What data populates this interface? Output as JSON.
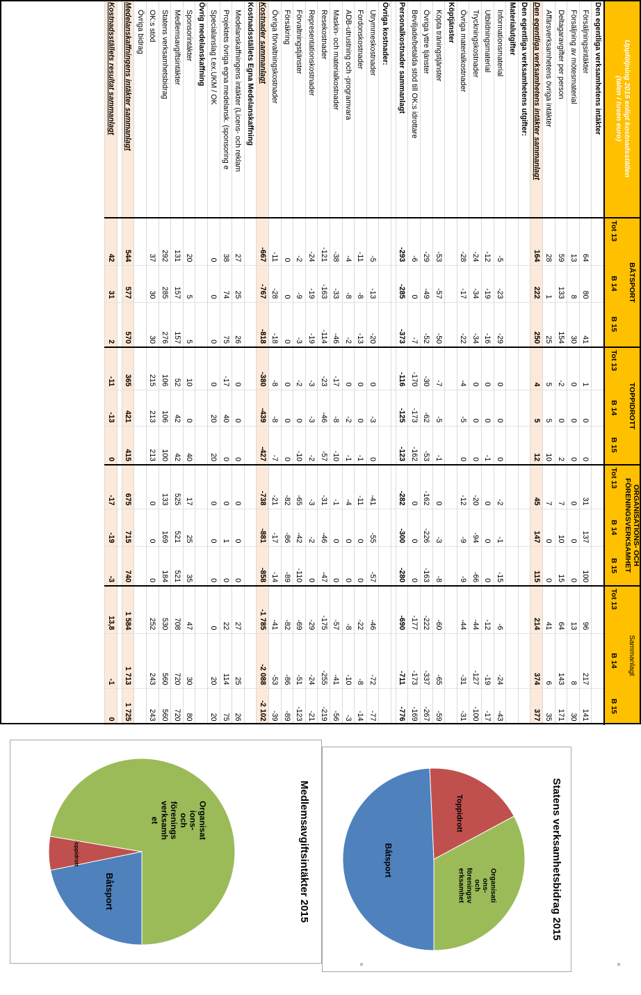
{
  "table": {
    "title": "Uppföljning 2015 enligt kostnadsställen",
    "subtitle": "(talen i tusen euro)",
    "groups": [
      "BÅTSPORT",
      "TOPPIDROTT",
      "ORGANISATIONS- OCH FÖRENINGSVERKSAMHET",
      "Sammanlagt"
    ],
    "columns": [
      "Tot 13",
      "B 14",
      "B 15"
    ],
    "rows": [
      {
        "label": "Den egentliga verksamhetens intäkter",
        "kind": "sec",
        "values": [
          "",
          "",
          "",
          "",
          "",
          "",
          "",
          "",
          "",
          "",
          "",
          ""
        ]
      },
      {
        "label": "Försäljningsintäkter",
        "kind": "ind",
        "values": [
          "64",
          "80",
          "41",
          "1",
          "0",
          "0",
          "31",
          "137",
          "100",
          "96",
          "217",
          "141"
        ]
      },
      {
        "label": "Försäljning av mötesmaterial",
        "kind": "ind",
        "values": [
          "13",
          "8",
          "30",
          "0",
          "0",
          "0",
          "0",
          "0",
          "0",
          "13",
          "8",
          "30"
        ]
      },
      {
        "label": "Deltagaravgifter per person",
        "kind": "ind",
        "values": [
          "59",
          "133",
          "154",
          "-2",
          "0",
          "2",
          "7",
          "10",
          "15",
          "64",
          "143",
          "171"
        ]
      },
      {
        "label": "Affärsverksamhetens övriga intäkter",
        "kind": "ind",
        "values": [
          "28",
          "1",
          "25",
          "5",
          "5",
          "10",
          "7",
          "0",
          "0",
          "41",
          "6",
          "35"
        ]
      },
      {
        "label": "Den egentliga verksamhetens intäkter sammanlagt",
        "kind": "tot",
        "values": [
          "164",
          "222",
          "250",
          "4",
          "5",
          "12",
          "45",
          "147",
          "115",
          "214",
          "374",
          "377"
        ]
      },
      {
        "label": "Den egentliga verksamhetens utgifter:",
        "kind": "sec",
        "values": [
          "",
          "",
          "",
          "",
          "",
          "",
          "",
          "",
          "",
          "",
          "",
          ""
        ]
      },
      {
        "label": "Materialutgifter",
        "kind": "sec",
        "values": [
          "",
          "",
          "",
          "",
          "",
          "",
          "",
          "",
          "",
          "",
          "",
          ""
        ]
      },
      {
        "label": "Informationsmaterial",
        "kind": "ind",
        "values": [
          "-5",
          "-23",
          "-29",
          "0",
          "0",
          "0",
          "-2",
          "-1",
          "-15",
          "-6",
          "-24",
          "-43"
        ]
      },
      {
        "label": "Utbildningsmaterial",
        "kind": "ind",
        "values": [
          "-12",
          "-19",
          "-16",
          "0",
          "0",
          "-1",
          "0",
          "0",
          "0",
          "-12",
          "-19",
          "-17"
        ]
      },
      {
        "label": "Tryckningskostnader",
        "kind": "ind",
        "values": [
          "-24",
          "-34",
          "-34",
          "0",
          "0",
          "0",
          "-20",
          "-94",
          "-66",
          "-44",
          "-127",
          "-100"
        ]
      },
      {
        "label": "Övriga materialkostnader",
        "kind": "ind",
        "values": [
          "-28",
          "-17",
          "-22",
          "-4",
          "-5",
          "0",
          "-12",
          "-9",
          "-9",
          "-44",
          "-31",
          "-31"
        ]
      },
      {
        "label": "Köptjänster",
        "kind": "sec",
        "values": [
          "",
          "",
          "",
          "",
          "",
          "",
          "",
          "",
          "",
          "",
          "",
          ""
        ]
      },
      {
        "label": "Köpta träningstjänster",
        "kind": "ind",
        "values": [
          "-53",
          "-57",
          "-50",
          "-7",
          "-5",
          "-1",
          "0",
          "-3",
          "-8",
          "-60",
          "-65",
          "-59"
        ]
      },
      {
        "label": "Övriga yttre tjänster",
        "kind": "ind",
        "values": [
          "-29",
          "-49",
          "-52",
          "-30",
          "-62",
          "-53",
          "-162",
          "-226",
          "-163",
          "-222",
          "-337",
          "-267"
        ]
      },
      {
        "label": "Beviljade/betalda stöd till OK:s idrottare",
        "kind": "ind",
        "values": [
          "-6",
          "0",
          "-7",
          "-170",
          "-173",
          "-162",
          "0",
          "0",
          "0",
          "-177",
          "-173",
          "-169"
        ]
      },
      {
        "label": "Personalkostnader sammanlagt",
        "kind": "bold",
        "values": [
          "-293",
          "-285",
          "-373",
          "-116",
          "-125",
          "-123",
          "-282",
          "-300",
          "-280",
          "-690",
          "-711",
          "-776"
        ]
      },
      {
        "label": "",
        "kind": "gap",
        "values": [
          "",
          "",
          "",
          "",
          "",
          "",
          "",
          "",
          "",
          "",
          "",
          ""
        ]
      },
      {
        "label": "Övriga kostnader:",
        "kind": "sec",
        "values": [
          "",
          "",
          "",
          "",
          "",
          "",
          "",
          "",
          "",
          "",
          "",
          ""
        ]
      },
      {
        "label": "Utrymmeskostnader",
        "kind": "ind",
        "values": [
          "-5",
          "-13",
          "-20",
          "0",
          "-3",
          "0",
          "-41",
          "-55",
          "-57",
          "-46",
          "-72",
          "-77"
        ]
      },
      {
        "label": "Fordonskostnader",
        "kind": "ind",
        "values": [
          "-11",
          "-8",
          "-13",
          "0",
          "0",
          "-1",
          "-11",
          "0",
          "0",
          "-22",
          "-8",
          "-14"
        ]
      },
      {
        "label": "ADB-utrustning och -programvara",
        "kind": "ind",
        "values": [
          "-4",
          "-8",
          "-2",
          "0",
          "-2",
          "-1",
          "-4",
          "0",
          "0",
          "-8",
          "-10",
          "-3"
        ]
      },
      {
        "label": "Maskin- och materialkostnader",
        "kind": "ind",
        "values": [
          "-38",
          "-33",
          "-46",
          "-17",
          "-8",
          "-10",
          "-1",
          "0",
          "0",
          "-57",
          "-41",
          "-56"
        ]
      },
      {
        "label": "Resekostnader",
        "kind": "ind",
        "values": [
          "-121",
          "-163",
          "-114",
          "-23",
          "-46",
          "-57",
          "-31",
          "-46",
          "-47",
          "-175",
          "-255",
          "-219"
        ]
      },
      {
        "label": "Representationskostnader",
        "kind": "ind",
        "values": [
          "-24",
          "-19",
          "-19",
          "-3",
          "-3",
          "-2",
          "-3",
          "-2",
          "0",
          "-29",
          "-24",
          "-21"
        ]
      },
      {
        "label": "Förvaltningstjänster",
        "kind": "ind",
        "values": [
          "-2",
          "-9",
          "-3",
          "-2",
          "0",
          "-10",
          "-65",
          "-42",
          "-110",
          "-69",
          "-51",
          "-123"
        ]
      },
      {
        "label": "Försäkring",
        "kind": "ind",
        "values": [
          "0",
          "0",
          "0",
          "0",
          "0",
          "0",
          "-82",
          "-86",
          "-89",
          "-82",
          "-86",
          "-89"
        ]
      },
      {
        "label": "Övriga förvaltningskostnader",
        "kind": "ind",
        "values": [
          "-11",
          "-28",
          "-18",
          "-8",
          "-8",
          "-7",
          "-21",
          "-17",
          "-14",
          "-41",
          "-53",
          "-39"
        ]
      },
      {
        "label": "Kostnader sammanlagt",
        "kind": "tot",
        "values": [
          "-667",
          "-767",
          "-818",
          "-380",
          "-439",
          "-427",
          "-738",
          "-881",
          "-858",
          "-1 785",
          "-2 088",
          "-2 102"
        ]
      },
      {
        "label": "Kostnadsställets Egna Medelanskaffning",
        "kind": "sec",
        "values": [
          "",
          "",
          "",
          "",
          "",
          "",
          "",
          "",
          "",
          "",
          "",
          ""
        ]
      },
      {
        "label": "Medelanskaffningens intäkter (Licens- och reklam",
        "kind": "ind",
        "values": [
          "27",
          "25",
          "26",
          "0",
          "0",
          "0",
          "0",
          "0",
          "0",
          "27",
          "25",
          "26"
        ]
      },
      {
        "label": "Projektets övriga egna medelansk. (sponsoring e",
        "kind": "ind",
        "values": [
          "38",
          "74",
          "75",
          "-17",
          "40",
          "0",
          "0",
          "1",
          "0",
          "22",
          "114",
          "75"
        ]
      },
      {
        "label": "Specialanslag t.ex.UKM / OK",
        "kind": "ind",
        "values": [
          "0",
          "0",
          "0",
          "0",
          "20",
          "20",
          "0",
          "0",
          "0",
          "0",
          "20",
          "20"
        ]
      },
      {
        "label": "Övrig medelanskaffning",
        "kind": "sec",
        "values": [
          "",
          "",
          "",
          "",
          "",
          "",
          "",
          "",
          "",
          "",
          "",
          ""
        ]
      },
      {
        "label": "Sponsorintäkter",
        "kind": "ind",
        "values": [
          "20",
          "5",
          "5",
          "10",
          "0",
          "40",
          "17",
          "25",
          "35",
          "47",
          "30",
          "80"
        ]
      },
      {
        "label": "Medlemsavgiftsintäkter",
        "kind": "ind",
        "values": [
          "131",
          "157",
          "157",
          "52",
          "42",
          "42",
          "525",
          "521",
          "521",
          "708",
          "720",
          "720"
        ]
      },
      {
        "label": "Statens verksamhetsbidrag",
        "kind": "ind",
        "values": [
          "292",
          "285",
          "276",
          "106",
          "106",
          "100",
          "133",
          "169",
          "184",
          "530",
          "560",
          "560"
        ]
      },
      {
        "label": "OK:s stöd",
        "kind": "ind",
        "values": [
          "37",
          "30",
          "30",
          "215",
          "213",
          "213",
          "0",
          "0",
          "0",
          "252",
          "243",
          "243"
        ]
      },
      {
        "label": "Övriga bidrag",
        "kind": "ind",
        "values": [
          "",
          "",
          "",
          "",
          "",
          "",
          "",
          "",
          "",
          "",
          "",
          ""
        ]
      },
      {
        "label": "Medelanskaffningens intäkter sammanlagt",
        "kind": "tot",
        "values": [
          "544",
          "577",
          "570",
          "365",
          "421",
          "415",
          "675",
          "715",
          "740",
          "1 584",
          "1 713",
          "1 725"
        ]
      },
      {
        "label": "",
        "kind": "gap",
        "values": [
          "",
          "",
          "",
          "",
          "",
          "",
          "",
          "",
          "",
          "",
          "",
          ""
        ]
      },
      {
        "label": "Kostnadsställets resultat sammanlagt",
        "kind": "tot",
        "values": [
          "42",
          "31",
          "2",
          "-11",
          "-13",
          "0",
          "-17",
          "-19",
          "-3",
          "13,8",
          "-1",
          "0"
        ]
      }
    ]
  },
  "chart_data": [
    {
      "type": "pie",
      "title": "Medlemsavgiftsintäkter  2015",
      "categories": [
        "Båtsport",
        "Toppidrott",
        "Organisat ions- och förenings verksamh et"
      ],
      "values": [
        157,
        42,
        521
      ],
      "colors": [
        "#4f81bd",
        "#c0504d",
        "#9bbb59"
      ]
    },
    {
      "type": "pie",
      "title": "Statens verksamhetsbidrag  2015",
      "categories": [
        "Båtsport",
        "Toppidrott",
        "Organisati ons- och föreningsv erksamhet"
      ],
      "values": [
        276,
        100,
        184
      ],
      "colors": [
        "#4f81bd",
        "#c0504d",
        "#9bbb59"
      ]
    }
  ]
}
